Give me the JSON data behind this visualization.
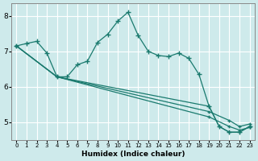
{
  "xlabel": "Humidex (Indice chaleur)",
  "background_color": "#ceeaeb",
  "grid_color": "#ffffff",
  "line_color": "#1a7a6e",
  "xlim": [
    -0.5,
    23.5
  ],
  "ylim": [
    4.5,
    8.35
  ],
  "yticks": [
    5,
    6,
    7,
    8
  ],
  "xticks": [
    0,
    1,
    2,
    3,
    4,
    5,
    6,
    7,
    8,
    9,
    10,
    11,
    12,
    13,
    14,
    15,
    16,
    17,
    18,
    19,
    20,
    21,
    22,
    23
  ],
  "series": [
    {
      "x": [
        0,
        1,
        2,
        3,
        4,
        5,
        6,
        7,
        8,
        9,
        10,
        11,
        12,
        13,
        14,
        15,
        16,
        17,
        18,
        19,
        20,
        21,
        22,
        23
      ],
      "y": [
        7.15,
        7.22,
        7.28,
        6.95,
        6.28,
        6.28,
        6.62,
        6.72,
        7.25,
        7.48,
        7.85,
        8.1,
        7.45,
        7.0,
        6.88,
        6.85,
        6.95,
        6.8,
        6.35,
        5.45,
        4.88,
        4.72,
        4.72,
        4.88
      ]
    },
    {
      "x": [
        0,
        4,
        19,
        20,
        21,
        22,
        23
      ],
      "y": [
        7.15,
        6.28,
        5.45,
        4.88,
        4.72,
        4.72,
        4.88
      ]
    },
    {
      "x": [
        0,
        4,
        19,
        21,
        22,
        23
      ],
      "y": [
        7.15,
        6.28,
        5.3,
        5.05,
        4.88,
        4.95
      ]
    },
    {
      "x": [
        0,
        4,
        19,
        21,
        22,
        23
      ],
      "y": [
        7.15,
        6.28,
        5.15,
        4.88,
        4.78,
        4.85
      ]
    }
  ]
}
